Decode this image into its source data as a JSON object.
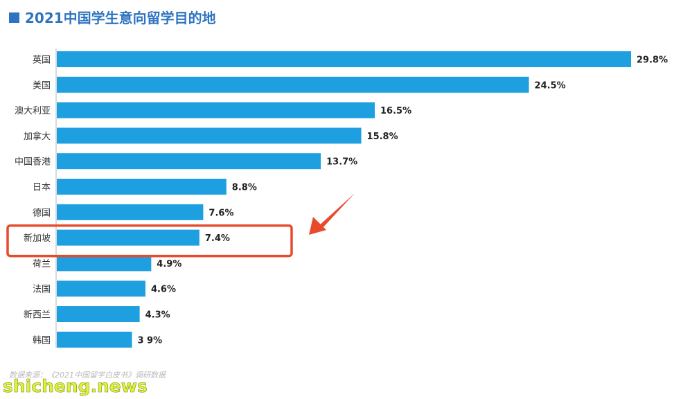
{
  "header": {
    "title": "2021中国学生意向留学目的地",
    "accent_color": "#2f74c0"
  },
  "chart_data": {
    "type": "bar",
    "orientation": "horizontal",
    "title": "2021中国学生意向留学目的地",
    "categories": [
      "英国",
      "美国",
      "澳大利亚",
      "加拿大",
      "中国香港",
      "日本",
      "德国",
      "新加坡",
      "荷兰",
      "法国",
      "新西兰",
      "韩国"
    ],
    "values": [
      29.8,
      24.5,
      16.5,
      15.8,
      13.7,
      8.8,
      7.6,
      7.4,
      4.9,
      4.6,
      4.3,
      3.9
    ],
    "value_labels": [
      "29.8%",
      "24.5%",
      "16.5%",
      "15.8%",
      "13.7%",
      "8.8%",
      "7.6%",
      "7.4%",
      "4.9%",
      "4.6%",
      "4.3%",
      "3 9%"
    ],
    "xlim": [
      0,
      30
    ],
    "grid": false,
    "bar_color": "#1e9fe0",
    "highlight": {
      "category": "新加坡",
      "box_color": "#e84a2c",
      "arrow_color": "#e84a2c"
    }
  },
  "source": {
    "text": "数据来源：《2021中国留学白皮书》调研数据"
  },
  "watermark": {
    "text": "shicheng.news"
  }
}
